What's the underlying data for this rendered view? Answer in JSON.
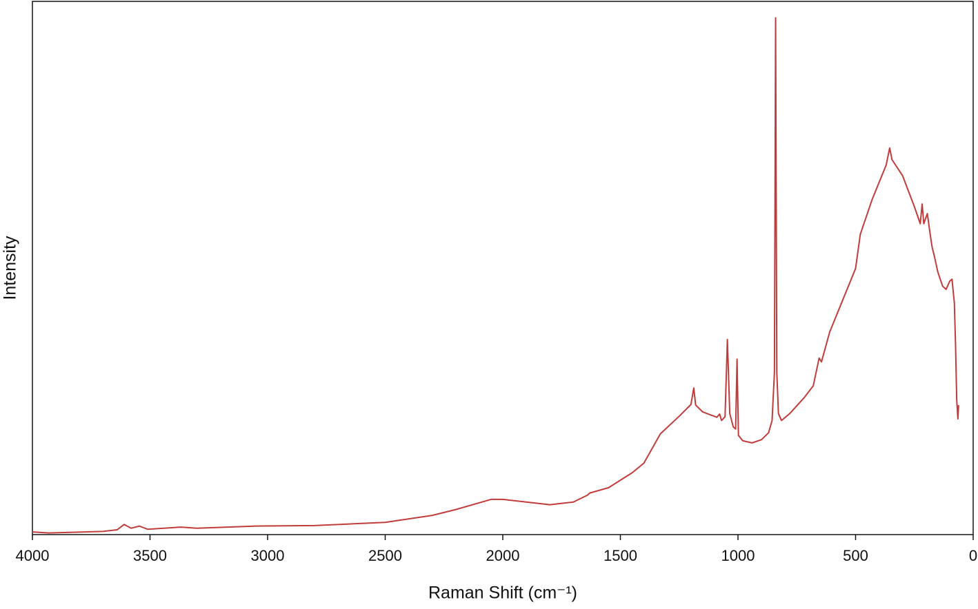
{
  "chart_data": {
    "type": "line",
    "x_label": "Raman Shift (cm⁻¹)",
    "y_label": "Intensity",
    "color": "#c23b3b",
    "xlim": [
      4000,
      0
    ],
    "ylim": [
      0,
      100
    ],
    "xticks": [
      4000,
      3500,
      3000,
      2500,
      2000,
      1500,
      1000,
      500,
      0
    ],
    "x": [
      4000,
      3930,
      3700,
      3640,
      3610,
      3580,
      3545,
      3510,
      3370,
      3300,
      3050,
      2800,
      2500,
      2300,
      2200,
      2050,
      2000,
      1900,
      1800,
      1700,
      1640,
      1630,
      1550,
      1450,
      1400,
      1330,
      1250,
      1200,
      1188,
      1180,
      1150,
      1090,
      1078,
      1070,
      1055,
      1045,
      1035,
      1020,
      1010,
      1004,
      998,
      980,
      940,
      900,
      870,
      855,
      845,
      840,
      835,
      828,
      815,
      780,
      720,
      680,
      655,
      645,
      610,
      500,
      480,
      430,
      370,
      355,
      345,
      300,
      250,
      225,
      217,
      210,
      195,
      185,
      175,
      165,
      150,
      130,
      115,
      100,
      90,
      80,
      75,
      70,
      65,
      62
    ],
    "values": [
      0.5,
      0.3,
      0.6,
      0.9,
      1.9,
      1.2,
      1.6,
      1.0,
      1.4,
      1.2,
      1.6,
      1.7,
      2.3,
      3.6,
      4.7,
      6.6,
      6.6,
      6.1,
      5.6,
      6.1,
      7.4,
      7.8,
      8.8,
      11.6,
      13.4,
      18.9,
      22.2,
      24.4,
      27.5,
      24.3,
      23.0,
      22.0,
      22.6,
      21.4,
      22.1,
      36.6,
      22.7,
      20.2,
      19.8,
      32.9,
      18.6,
      17.6,
      17.2,
      17.8,
      19.1,
      21.4,
      30.5,
      96.9,
      30.5,
      22.7,
      21.4,
      22.7,
      25.6,
      27.9,
      33.1,
      32.4,
      38.0,
      49.9,
      56.3,
      62.8,
      69.3,
      72.5,
      70.3,
      67.3,
      61.5,
      58.3,
      62.0,
      58.3,
      60.2,
      57.0,
      54.0,
      52.2,
      49.2,
      46.6,
      46.0,
      47.5,
      47.9,
      43.4,
      35.7,
      25.3,
      21.7,
      24.3
    ]
  }
}
